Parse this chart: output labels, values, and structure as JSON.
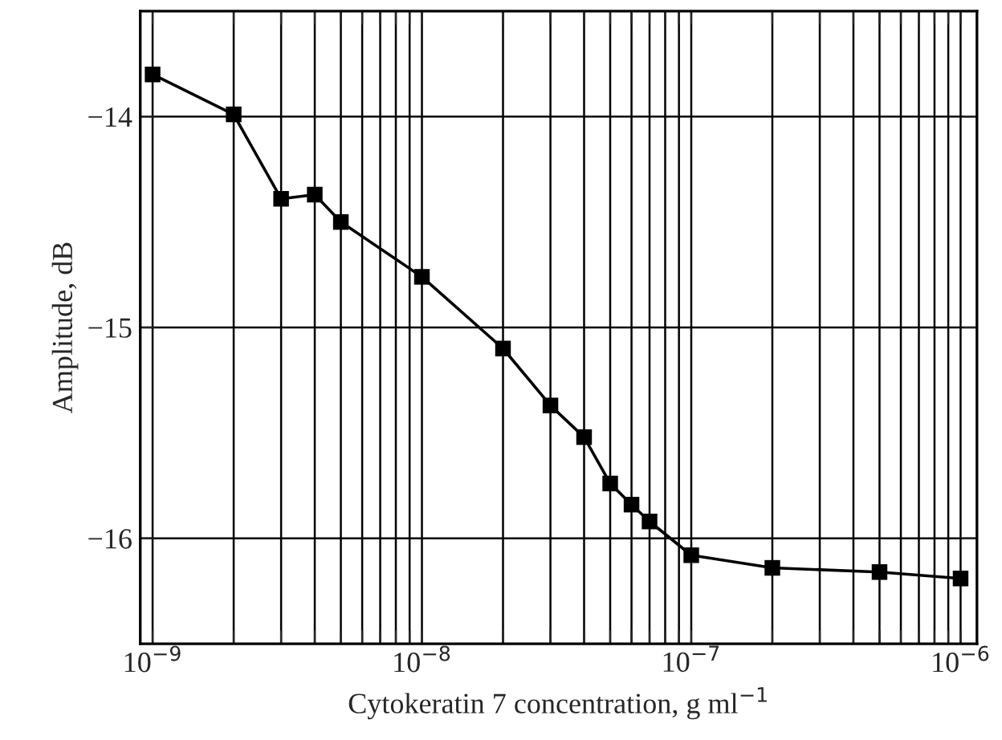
{
  "chart_data": {
    "type": "line",
    "xlabel": "Cytokeratin 7 concentration, g ml$^{−1}$",
    "ylabel": "Amplitude, dB",
    "x": [
      1e-09,
      2e-09,
      3e-09,
      4e-09,
      5e-09,
      1e-08,
      2e-08,
      3e-08,
      4e-08,
      5e-08,
      6e-08,
      7e-08,
      1e-07,
      2e-07,
      5e-07,
      1e-06
    ],
    "series": [
      {
        "color": "#000000",
        "values": [
          -13.8,
          -13.99,
          -14.39,
          -14.37,
          -14.5,
          -14.76,
          -15.1,
          -15.37,
          -15.52,
          -15.74,
          -15.84,
          -15.92,
          -16.08,
          -16.14,
          -16.16,
          -16.19
        ]
      }
    ],
    "log": "x",
    "xlim": [
      9e-10,
      1.15e-06
    ],
    "ylim": [
      -16.5,
      -13.5
    ],
    "xticks": [
      {
        "value": 1e-09,
        "label": "10$^{−9}$"
      },
      {
        "value": 2e-09,
        "label": null
      },
      {
        "value": 3e-09,
        "label": null
      },
      {
        "value": 4e-09,
        "label": null
      },
      {
        "value": 5e-09,
        "label": null
      },
      {
        "value": 6e-09,
        "label": null
      },
      {
        "value": 7e-09,
        "label": null
      },
      {
        "value": 8e-09,
        "label": null
      },
      {
        "value": 9e-09,
        "label": null
      },
      {
        "value": 1e-08,
        "label": "10$^{−8}$"
      },
      {
        "value": 2e-08,
        "label": null
      },
      {
        "value": 3e-08,
        "label": null
      },
      {
        "value": 4e-08,
        "label": null
      },
      {
        "value": 5e-08,
        "label": null
      },
      {
        "value": 6e-08,
        "label": null
      },
      {
        "value": 7e-08,
        "label": null
      },
      {
        "value": 8e-08,
        "label": null
      },
      {
        "value": 9e-08,
        "label": null
      },
      {
        "value": 1e-07,
        "label": "10$^{−7}$"
      },
      {
        "value": 2e-07,
        "label": null
      },
      {
        "value": 3e-07,
        "label": null
      },
      {
        "value": 4e-07,
        "label": null
      },
      {
        "value": 5e-07,
        "label": null
      },
      {
        "value": 6e-07,
        "label": null
      },
      {
        "value": 7e-07,
        "label": null
      },
      {
        "value": 8e-07,
        "label": null
      },
      {
        "value": 9e-07,
        "label": null
      },
      {
        "value": 1e-06,
        "label": "10$^{−6}$"
      }
    ],
    "yticks": [
      {
        "value": -16,
        "label": "−16"
      },
      {
        "value": -15,
        "label": "−15"
      },
      {
        "value": -14,
        "label": "−14"
      }
    ],
    "grid": true,
    "marker": "square",
    "line_style": "solid",
    "legend": false
  }
}
